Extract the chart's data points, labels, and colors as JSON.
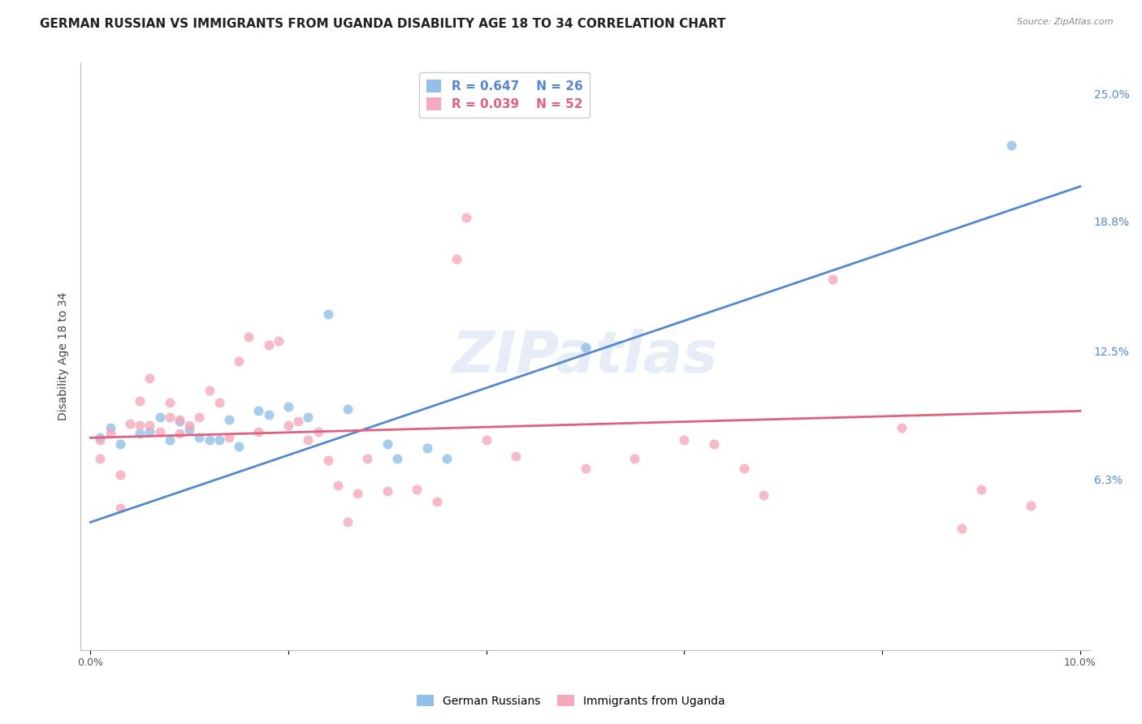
{
  "title": "GERMAN RUSSIAN VS IMMIGRANTS FROM UGANDA DISABILITY AGE 18 TO 34 CORRELATION CHART",
  "source": "Source: ZipAtlas.com",
  "ylabel": "Disability Age 18 to 34",
  "xlim": [
    -0.001,
    0.101
  ],
  "ylim": [
    -0.02,
    0.265
  ],
  "xticks": [
    0.0,
    0.02,
    0.04,
    0.06,
    0.08,
    0.1
  ],
  "xticklabels": [
    "0.0%",
    "",
    "",
    "",
    "",
    "10.0%"
  ],
  "ytick_labels_right": [
    "6.3%",
    "12.5%",
    "18.8%",
    "25.0%"
  ],
  "ytick_values_right": [
    0.063,
    0.125,
    0.188,
    0.25
  ],
  "watermark": "ZIPatlas",
  "blue_color": "#92C0E8",
  "pink_color": "#F5AABB",
  "blue_line_color": "#5588CC",
  "pink_line_color": "#E06080",
  "legend_R_blue": "R = 0.647",
  "legend_N_blue": "N = 26",
  "legend_R_pink": "R = 0.039",
  "legend_N_pink": "N = 52",
  "blue_scatter_x": [
    0.001,
    0.002,
    0.003,
    0.005,
    0.006,
    0.007,
    0.008,
    0.009,
    0.01,
    0.011,
    0.012,
    0.013,
    0.014,
    0.015,
    0.017,
    0.018,
    0.02,
    0.022,
    0.024,
    0.026,
    0.03,
    0.031,
    0.034,
    0.036,
    0.05,
    0.093
  ],
  "blue_scatter_y": [
    0.083,
    0.088,
    0.08,
    0.085,
    0.086,
    0.093,
    0.082,
    0.091,
    0.087,
    0.083,
    0.082,
    0.082,
    0.092,
    0.079,
    0.096,
    0.094,
    0.098,
    0.093,
    0.143,
    0.097,
    0.08,
    0.073,
    0.078,
    0.073,
    0.127,
    0.225
  ],
  "pink_scatter_x": [
    0.001,
    0.001,
    0.002,
    0.003,
    0.003,
    0.004,
    0.005,
    0.005,
    0.006,
    0.006,
    0.007,
    0.008,
    0.008,
    0.009,
    0.009,
    0.01,
    0.011,
    0.012,
    0.013,
    0.014,
    0.015,
    0.016,
    0.017,
    0.018,
    0.019,
    0.02,
    0.021,
    0.022,
    0.023,
    0.024,
    0.025,
    0.026,
    0.027,
    0.028,
    0.03,
    0.033,
    0.035,
    0.037,
    0.038,
    0.04,
    0.043,
    0.05,
    0.055,
    0.06,
    0.063,
    0.066,
    0.068,
    0.075,
    0.082,
    0.088,
    0.09,
    0.095
  ],
  "pink_scatter_y": [
    0.082,
    0.073,
    0.085,
    0.065,
    0.049,
    0.09,
    0.089,
    0.101,
    0.112,
    0.089,
    0.086,
    0.093,
    0.1,
    0.092,
    0.085,
    0.089,
    0.093,
    0.106,
    0.1,
    0.083,
    0.12,
    0.132,
    0.086,
    0.128,
    0.13,
    0.089,
    0.091,
    0.082,
    0.086,
    0.072,
    0.06,
    0.042,
    0.056,
    0.073,
    0.057,
    0.058,
    0.052,
    0.17,
    0.19,
    0.082,
    0.074,
    0.068,
    0.073,
    0.082,
    0.08,
    0.068,
    0.055,
    0.16,
    0.088,
    0.039,
    0.058,
    0.05
  ],
  "blue_line_x": [
    0.0,
    0.1
  ],
  "blue_line_y": [
    0.042,
    0.205
  ],
  "pink_line_x": [
    0.0,
    0.1
  ],
  "pink_line_y": [
    0.083,
    0.096
  ],
  "background_color": "#FFFFFF",
  "grid_color": "#CCCCCC",
  "title_fontsize": 11,
  "axis_label_fontsize": 10,
  "tick_fontsize": 9,
  "marker_size": 75
}
